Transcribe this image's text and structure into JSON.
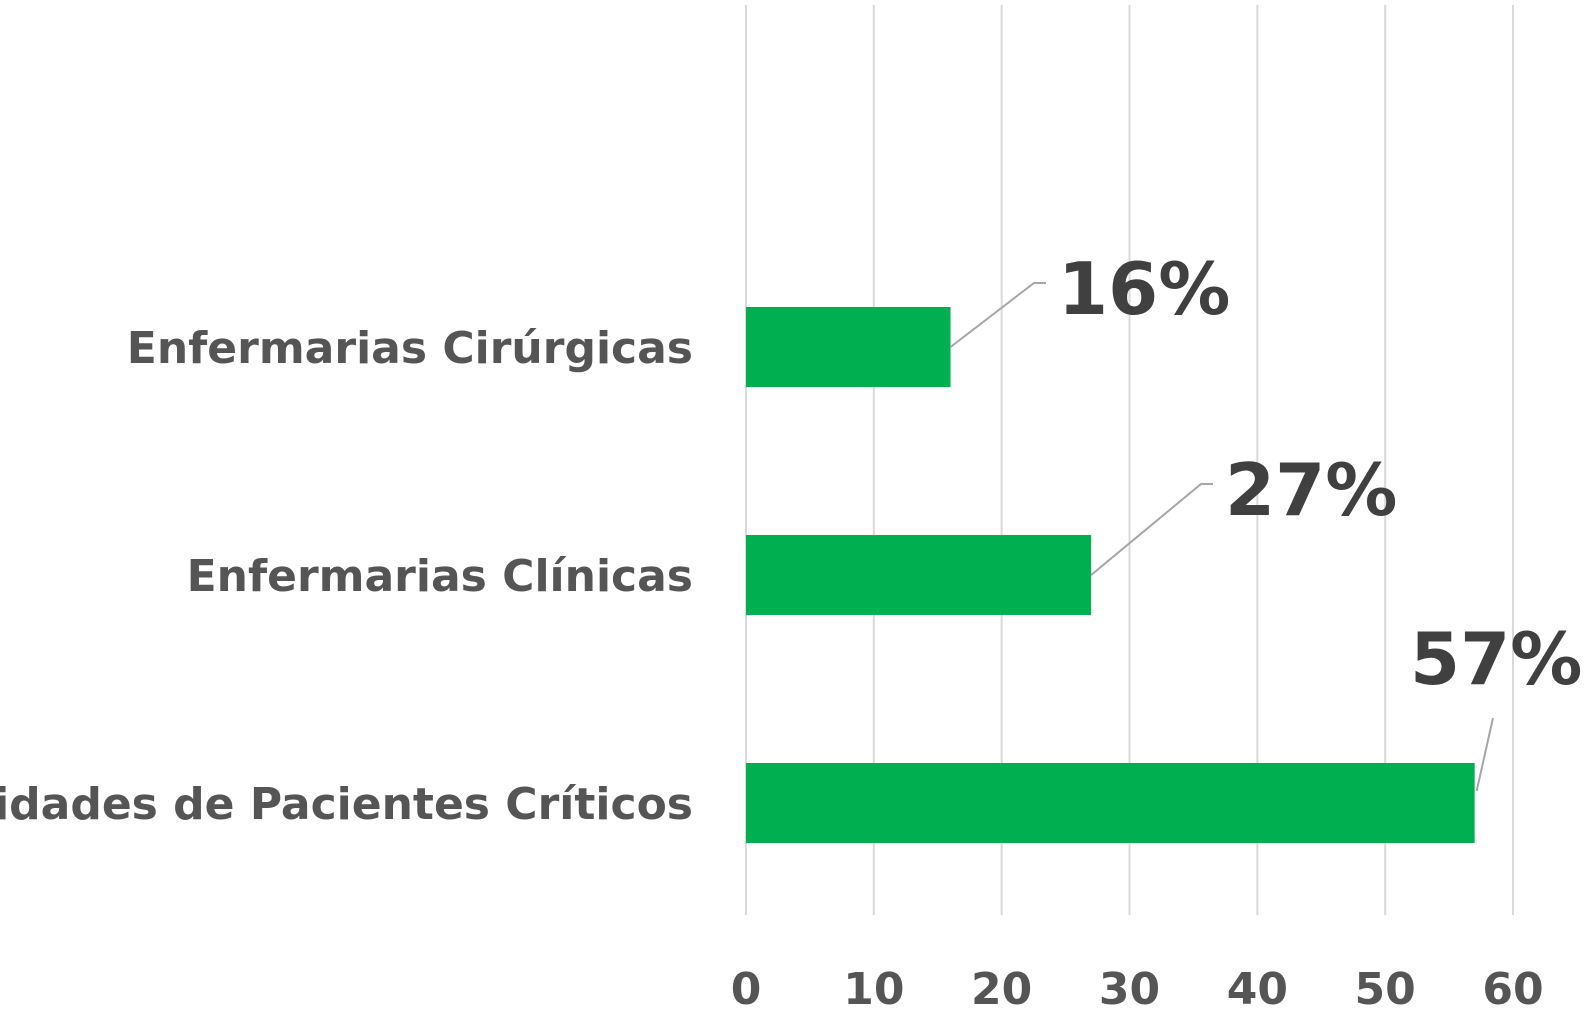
{
  "chart_data": {
    "type": "bar",
    "orientation": "horizontal",
    "title": "",
    "xlabel": "",
    "ylabel": "",
    "categories": [
      "Enfermarias Cirúrgicas",
      "Enfermarias Clínicas",
      "Unidades de Pacientes Críticos"
    ],
    "values": [
      16,
      27,
      57
    ],
    "data_labels": [
      "16%",
      "27%",
      "57%"
    ],
    "xlim": [
      0,
      60
    ],
    "xticks": [
      0,
      10,
      20,
      30,
      40,
      50,
      60
    ],
    "xtick_labels": [
      "0",
      "10",
      "20",
      "30",
      "40",
      "50",
      "60"
    ],
    "grid": "vertical",
    "legend": "none",
    "colors": {
      "bar": "#00b050",
      "gridline": "#d9d9d9",
      "category_text": "#555555",
      "tick_text": "#555555",
      "data_label_text": "#404040",
      "leader_line": "#a6a6a6"
    }
  }
}
